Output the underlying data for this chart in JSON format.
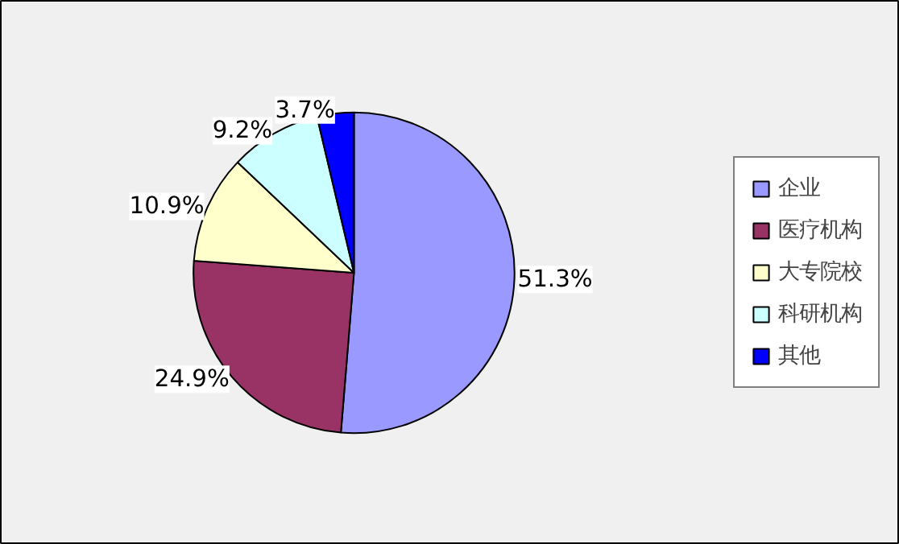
{
  "chart_data": {
    "type": "pie",
    "categories": [
      "企业",
      "医疗机构",
      "大专院校",
      "科研机构",
      "其他"
    ],
    "values": [
      51.3,
      24.9,
      10.9,
      9.2,
      3.7
    ],
    "colors": [
      "#9999ff",
      "#993366",
      "#ffffcc",
      "#ccffff",
      "#0000ff"
    ],
    "value_labels": [
      "51.3%",
      "24.9%",
      "10.9%",
      "9.2%",
      "3.7%"
    ],
    "legend": "right"
  }
}
